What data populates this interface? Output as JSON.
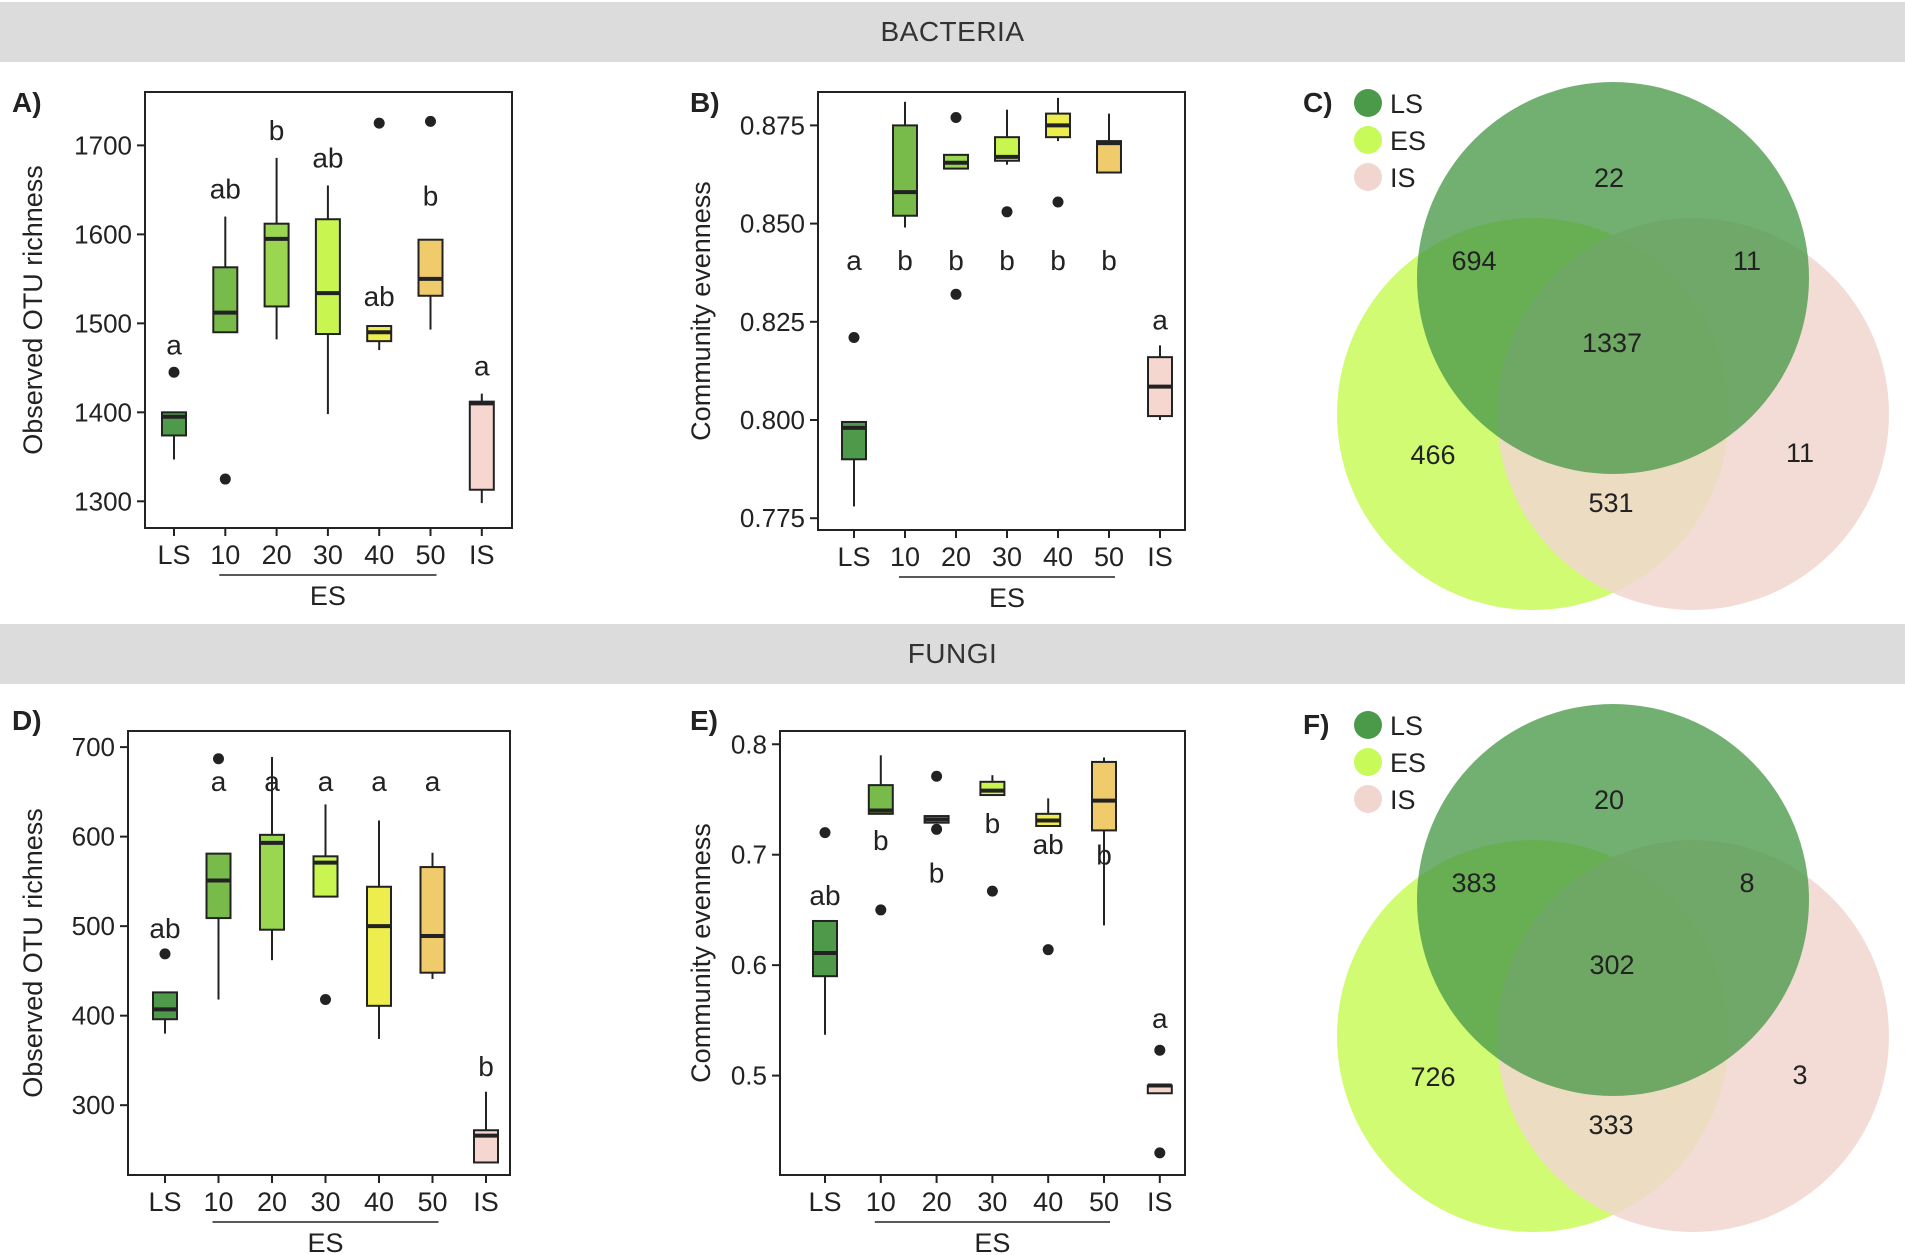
{
  "sections": [
    {
      "title": "BACTERIA"
    },
    {
      "title": "FUNGI"
    }
  ],
  "colors": {
    "LS": "#4e9a4a",
    "ES10": "#78bb4a",
    "ES20": "#9ad64f",
    "ES30": "#c8f54f",
    "ES40": "#eded4d",
    "ES50": "#f0cb6c",
    "IS": "#f6d7d0",
    "venn_LS": "#4a9a4a",
    "venn_ES": "#c8fa5a",
    "venn_IS": "#f1d6cf"
  },
  "chart_data": [
    {
      "id": "A",
      "panel_label": "A)",
      "type": "box",
      "ylabel": "Observed OTU richness",
      "ylim": [
        1270,
        1760
      ],
      "yticks": [
        1300,
        1400,
        1500,
        1600,
        1700
      ],
      "categories": [
        "LS",
        "10",
        "20",
        "30",
        "40",
        "50",
        "IS"
      ],
      "group_label": "ES",
      "boxes": [
        {
          "q1": 1374,
          "median": 1395,
          "q3": 1400,
          "wlo": 1347,
          "whi": 1400,
          "outliers": [
            1445
          ],
          "letter": "a"
        },
        {
          "q1": 1490,
          "median": 1512,
          "q3": 1563,
          "wlo": 1490,
          "whi": 1620,
          "outliers": [
            1325
          ],
          "letter": "ab"
        },
        {
          "q1": 1519,
          "median": 1595,
          "q3": 1612,
          "wlo": 1482,
          "whi": 1686,
          "outliers": [],
          "letter": "b"
        },
        {
          "q1": 1488,
          "median": 1534,
          "q3": 1617,
          "wlo": 1398,
          "whi": 1655,
          "outliers": [],
          "letter": "ab"
        },
        {
          "q1": 1480,
          "median": 1490,
          "q3": 1497,
          "wlo": 1470,
          "whi": 1497,
          "outliers": [
            1725
          ],
          "letter": "ab"
        },
        {
          "q1": 1531,
          "median": 1550,
          "q3": 1594,
          "wlo": 1493,
          "whi": 1594,
          "outliers": [
            1727
          ],
          "letter": "b"
        },
        {
          "q1": 1313,
          "median": 1410,
          "q3": 1412,
          "wlo": 1298,
          "whi": 1421,
          "outliers": [],
          "letter": "a"
        }
      ]
    },
    {
      "id": "B",
      "panel_label": "B)",
      "type": "box",
      "ylabel": "Community evenness",
      "ylim": [
        0.772,
        0.8835
      ],
      "yticks": [
        0.775,
        0.8,
        0.825,
        0.85,
        0.875
      ],
      "ytick_labels": [
        "0.775",
        "0.800",
        "0.825",
        "0.850",
        "0.875"
      ],
      "categories": [
        "LS",
        "10",
        "20",
        "30",
        "40",
        "50",
        "IS"
      ],
      "group_label": "ES",
      "boxes": [
        {
          "q1": 0.79,
          "median": 0.798,
          "q3": 0.7995,
          "wlo": 0.778,
          "whi": 0.7995,
          "outliers": [
            0.821
          ],
          "letter": "a",
          "letter_pos": "below"
        },
        {
          "q1": 0.852,
          "median": 0.858,
          "q3": 0.875,
          "wlo": 0.849,
          "whi": 0.881,
          "outliers": [],
          "letter": "b",
          "letter_pos": "below"
        },
        {
          "q1": 0.864,
          "median": 0.8655,
          "q3": 0.8675,
          "wlo": 0.864,
          "whi": 0.8675,
          "outliers": [
            0.877,
            0.832
          ],
          "letter": "b",
          "letter_pos": "below"
        },
        {
          "q1": 0.866,
          "median": 0.867,
          "q3": 0.872,
          "wlo": 0.865,
          "whi": 0.879,
          "outliers": [
            0.853
          ],
          "letter": "b",
          "letter_pos": "below"
        },
        {
          "q1": 0.872,
          "median": 0.875,
          "q3": 0.878,
          "wlo": 0.871,
          "whi": 0.882,
          "outliers": [
            0.8555
          ],
          "letter": "b",
          "letter_pos": "below"
        },
        {
          "q1": 0.863,
          "median": 0.8705,
          "q3": 0.871,
          "wlo": 0.863,
          "whi": 0.878,
          "outliers": [],
          "letter": "b",
          "letter_pos": "below"
        },
        {
          "q1": 0.801,
          "median": 0.8085,
          "q3": 0.816,
          "wlo": 0.8,
          "whi": 0.819,
          "outliers": [],
          "letter": "a"
        }
      ]
    },
    {
      "id": "D",
      "panel_label": "D)",
      "type": "box",
      "ylabel": "Observed OTU richness",
      "ylim": [
        222,
        718
      ],
      "yticks": [
        300,
        400,
        500,
        600,
        700
      ],
      "categories": [
        "LS",
        "10",
        "20",
        "30",
        "40",
        "50",
        "IS"
      ],
      "group_label": "ES",
      "boxes": [
        {
          "q1": 396,
          "median": 407,
          "q3": 426,
          "wlo": 380,
          "whi": 426,
          "outliers": [
            469
          ],
          "letter": "ab"
        },
        {
          "q1": 509,
          "median": 551,
          "q3": 581,
          "wlo": 418,
          "whi": 581,
          "outliers": [
            687
          ],
          "letter": "a"
        },
        {
          "q1": 496,
          "median": 593,
          "q3": 602,
          "wlo": 462,
          "whi": 689,
          "outliers": [],
          "letter": "a"
        },
        {
          "q1": 533,
          "median": 571,
          "q3": 578,
          "wlo": 533,
          "whi": 636,
          "outliers": [
            418
          ],
          "letter": "a"
        },
        {
          "q1": 411,
          "median": 500,
          "q3": 544,
          "wlo": 374,
          "whi": 618,
          "outliers": [],
          "letter": "a"
        },
        {
          "q1": 448,
          "median": 489,
          "q3": 566,
          "wlo": 441,
          "whi": 582,
          "outliers": [],
          "letter": "a"
        },
        {
          "q1": 236,
          "median": 266,
          "q3": 272,
          "wlo": 236,
          "whi": 315,
          "outliers": [],
          "letter": "b"
        }
      ]
    },
    {
      "id": "E",
      "panel_label": "E)",
      "type": "box",
      "ylabel": "Community evenness",
      "ylim": [
        0.41,
        0.812
      ],
      "yticks": [
        0.5,
        0.6,
        0.7,
        0.8
      ],
      "ytick_labels": [
        "0.5",
        "0.6",
        "0.7",
        "0.8"
      ],
      "categories": [
        "LS",
        "10",
        "20",
        "30",
        "40",
        "50",
        "IS"
      ],
      "group_label": "ES",
      "boxes": [
        {
          "q1": 0.59,
          "median": 0.611,
          "q3": 0.64,
          "wlo": 0.537,
          "whi": 0.64,
          "outliers": [
            0.72
          ],
          "letter": "ab",
          "letter_pos": "above"
        },
        {
          "q1": 0.737,
          "median": 0.74,
          "q3": 0.763,
          "wlo": 0.737,
          "whi": 0.79,
          "outliers": [
            0.65
          ],
          "letter": "b",
          "letter_pos": "below"
        },
        {
          "q1": 0.729,
          "median": 0.732,
          "q3": 0.735,
          "wlo": 0.729,
          "whi": 0.735,
          "outliers": [
            0.771,
            0.723
          ],
          "letter": "b",
          "letter_pos": "below"
        },
        {
          "q1": 0.754,
          "median": 0.758,
          "q3": 0.766,
          "wlo": 0.754,
          "whi": 0.772,
          "outliers": [
            0.667
          ],
          "letter": "b",
          "letter_pos": "below"
        },
        {
          "q1": 0.726,
          "median": 0.731,
          "q3": 0.737,
          "wlo": 0.726,
          "whi": 0.751,
          "outliers": [
            0.614
          ],
          "letter": "ab",
          "letter_pos": "below"
        },
        {
          "q1": 0.722,
          "median": 0.749,
          "q3": 0.784,
          "wlo": 0.636,
          "whi": 0.788,
          "outliers": [],
          "letter": "b",
          "letter_pos": "below"
        },
        {
          "q1": 0.484,
          "median": 0.491,
          "q3": 0.491,
          "wlo": 0.484,
          "whi": 0.491,
          "outliers": [
            0.523,
            0.43
          ],
          "letter": "a",
          "letter_pos": "top"
        }
      ]
    },
    {
      "id": "C",
      "panel_label": "C)",
      "type": "venn",
      "legend": [
        "LS",
        "ES",
        "IS"
      ],
      "regions": {
        "LS_only": 22,
        "LS_ES": 694,
        "LS_IS": 11,
        "all": 1337,
        "ES_only": 466,
        "IS_only": 11,
        "ES_IS": 531
      }
    },
    {
      "id": "F",
      "panel_label": "F)",
      "type": "venn",
      "legend": [
        "LS",
        "ES",
        "IS"
      ],
      "regions": {
        "LS_only": 20,
        "LS_ES": 383,
        "LS_IS": 8,
        "all": 302,
        "ES_only": 726,
        "IS_only": 3,
        "ES_IS": 333
      }
    }
  ]
}
